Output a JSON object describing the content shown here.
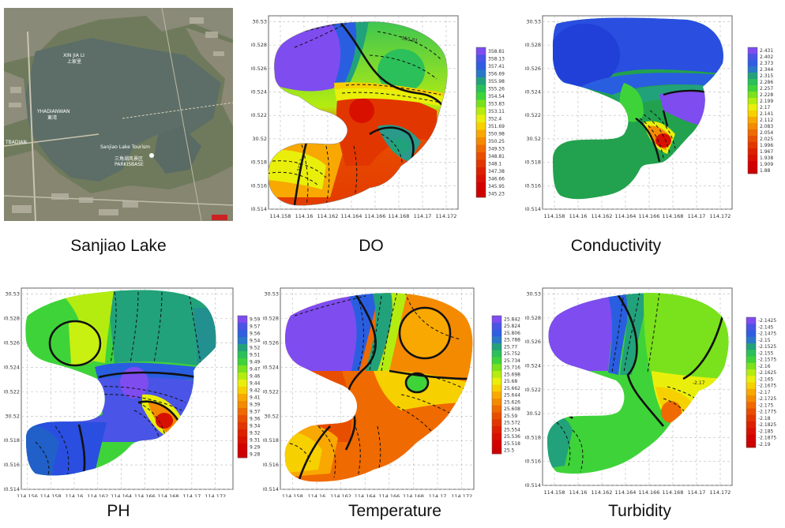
{
  "satellite": {
    "labels": [
      "XIN JIA LI",
      "上家里",
      "YHADIANWAN",
      "東湾",
      "TBADIAN",
      "Sanjiao Lake Tourism",
      "三角湖风景区",
      "PARKISBASE"
    ],
    "caption": "Sanjiao Lake"
  },
  "chart_data": [
    {
      "type": "heatmap",
      "id": "do",
      "caption": "DO",
      "x_ticks": [
        "114.158",
        "114.16",
        "114.162",
        "114.164",
        "114.166",
        "114.168",
        "114.17",
        "114.172"
      ],
      "y_ticks": [
        "30.53",
        "30.528",
        "30.526",
        "30.524",
        "30.522",
        "30.52",
        "30.518",
        "30.516",
        "30.514"
      ],
      "xlim": [
        114.157,
        114.173
      ],
      "ylim": [
        30.514,
        30.5305
      ],
      "colorbar_labels": [
        "358.81",
        "358.13",
        "357.41",
        "356.69",
        "355.98",
        "355.26",
        "354.54",
        "353.83",
        "353.11",
        "352.4",
        "351.69",
        "350.98",
        "350.25",
        "349.53",
        "348.81",
        "348.1",
        "347.38",
        "346.66",
        "345.95",
        "345.23"
      ],
      "contour_labels": [
        "355.81",
        "348.1"
      ],
      "grid": true
    },
    {
      "type": "heatmap",
      "id": "conductivity",
      "caption": "Conductivity",
      "x_ticks": [
        "114.158",
        "114.16",
        "114.162",
        "114.164",
        "114.166",
        "114.168",
        "114.17",
        "114.172"
      ],
      "y_ticks": [
        "30.53",
        "30.528",
        "30.526",
        "30.524",
        "30.522",
        "30.52",
        "30.518",
        "30.516",
        "30.514"
      ],
      "xlim": [
        114.157,
        114.173
      ],
      "ylim": [
        30.514,
        30.5305
      ],
      "colorbar_labels": [
        "2.431",
        "2.402",
        "2.373",
        "2.344",
        "2.315",
        "2.286",
        "2.257",
        "2.228",
        "2.199",
        "2.17",
        "2.141",
        "2.112",
        "2.083",
        "2.054",
        "2.025",
        "1.996",
        "1.967",
        "1.938",
        "1.909",
        "1.88"
      ],
      "contour_labels": [],
      "grid": true
    },
    {
      "type": "heatmap",
      "id": "ph",
      "caption": "PH",
      "x_ticks": [
        "114.156",
        "114.158",
        "114.16",
        "114.162",
        "114.164",
        "114.166",
        "114.168",
        "114.17",
        "114.172"
      ],
      "y_ticks": [
        "30.53",
        "30.528",
        "30.526",
        "30.524",
        "30.522",
        "30.52",
        "30.518",
        "30.516",
        "30.514"
      ],
      "xlim": [
        114.1555,
        114.1735
      ],
      "ylim": [
        30.514,
        30.5305
      ],
      "colorbar_labels": [
        "9.5935",
        "9.577",
        "9.5605",
        "9.544",
        "9.5275",
        "9.511",
        "9.4945",
        "9.478",
        "9.4615",
        "9.445",
        "9.4285",
        "9.412",
        "9.3955",
        "9.379",
        "9.3625",
        "9.346",
        "9.3295",
        "9.313",
        "9.2985",
        "9.28"
      ],
      "contour_labels": [],
      "grid": true
    },
    {
      "type": "heatmap",
      "id": "temperature",
      "caption": "Temperature",
      "x_ticks": [
        "114.158",
        "114.16",
        "114.162",
        "114.164",
        "114.166",
        "114.168",
        "114.17",
        "114.172"
      ],
      "y_ticks": [
        "30.53",
        "30.528",
        "30.526",
        "30.524",
        "30.522",
        "30.52",
        "30.518",
        "30.516",
        "30.514"
      ],
      "xlim": [
        114.157,
        114.173
      ],
      "ylim": [
        30.514,
        30.5305
      ],
      "colorbar_labels": [
        "25.842",
        "25.824",
        "25.806",
        "25.788",
        "25.77",
        "25.752",
        "25.734",
        "25.716",
        "25.698",
        "25.68",
        "25.662",
        "25.644",
        "25.626",
        "25.608",
        "25.59",
        "25.572",
        "25.554",
        "25.536",
        "25.518",
        "25.5"
      ],
      "contour_labels": [],
      "grid": true
    },
    {
      "type": "heatmap",
      "id": "turbidity",
      "caption": "Turbidity",
      "x_ticks": [
        "114.158",
        "114.16",
        "114.162",
        "114.164",
        "114.166",
        "114.168",
        "114.17",
        "114.172"
      ],
      "y_ticks": [
        "30.53",
        "30.528",
        "30.526",
        "30.524",
        "30.522",
        "30.52",
        "30.518",
        "30.516",
        "30.514"
      ],
      "xlim": [
        114.157,
        114.173
      ],
      "ylim": [
        30.514,
        30.5305
      ],
      "colorbar_labels": [
        "-2.1425",
        "-2.145",
        "-2.1475",
        "-2.15",
        "-2.1525",
        "-2.155",
        "-2.1575",
        "-2.16",
        "-2.1625",
        "-2.165",
        "-2.1675",
        "-2.17",
        "-2.1725",
        "-2.175",
        "-2.1775",
        "-2.18",
        "-2.1825",
        "-2.185",
        "-2.1875",
        "-2.19"
      ],
      "contour_labels": [
        "-2.17"
      ],
      "grid": true
    }
  ],
  "palette": [
    "#7f4cf0",
    "#4a54e6",
    "#2f5ee0",
    "#2a78c8",
    "#22a27a",
    "#2cc05a",
    "#3fd33a",
    "#7ae21c",
    "#b5ec10",
    "#e9ef0a",
    "#f7d000",
    "#f8a800",
    "#f48a00",
    "#ef6a00",
    "#e84e00",
    "#e23600",
    "#dc2000",
    "#d81000",
    "#d40000",
    "#cc0000"
  ]
}
